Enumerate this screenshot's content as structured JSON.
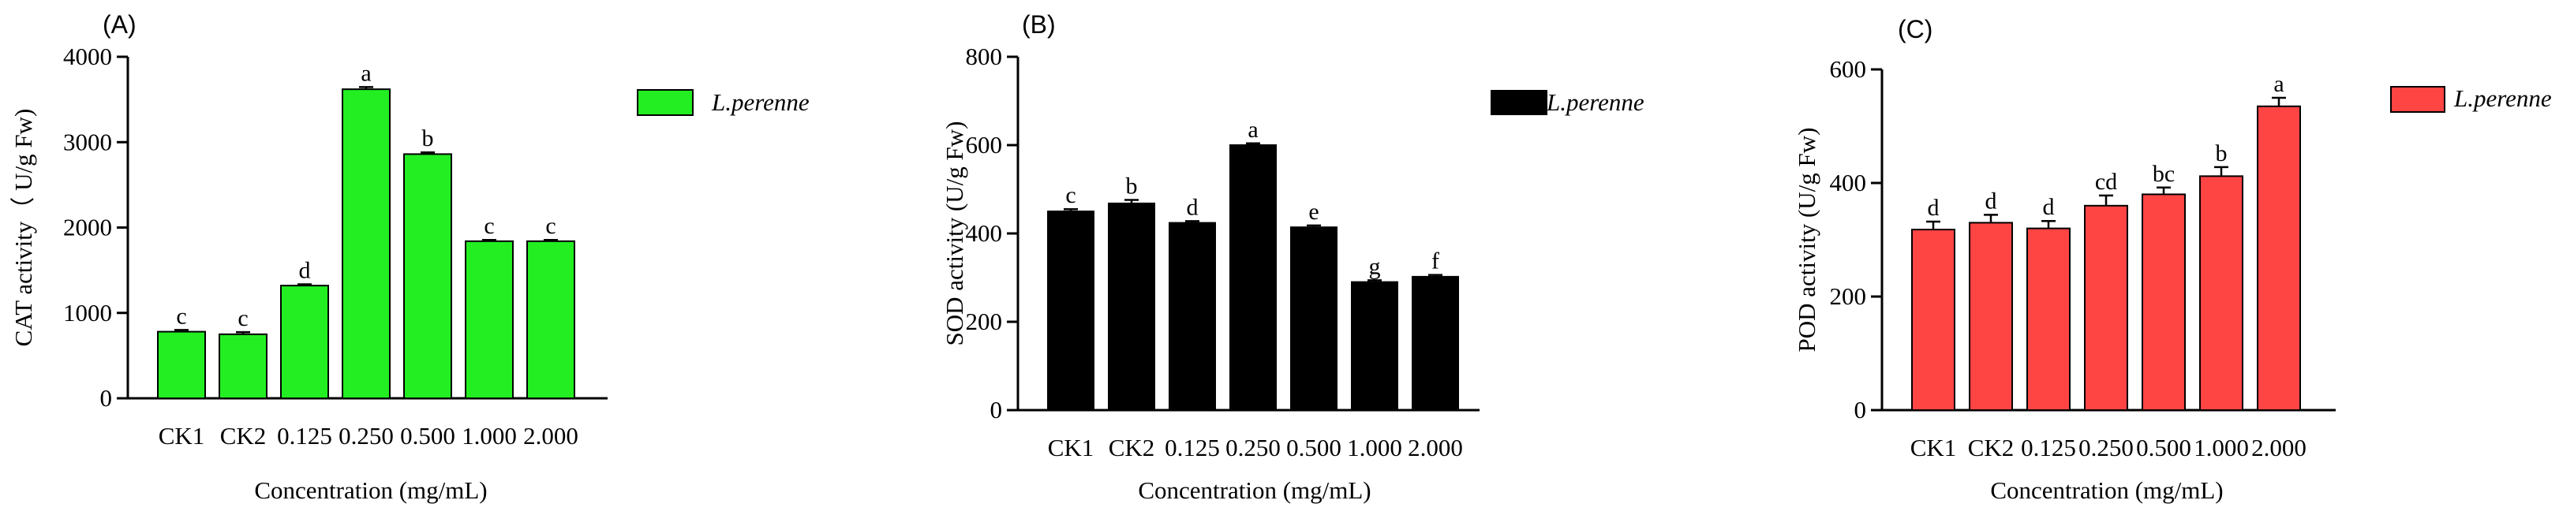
{
  "chart_data": [
    {
      "type": "bar",
      "panel_label": "(A)",
      "title": "",
      "xlabel": "Concentration (mg/mL)",
      "ylabel": "CAT activity（ U/g Fw)",
      "categories": [
        "CK1",
        "CK2",
        "0.125",
        "0.250",
        "0.500",
        "1.000",
        "2.000"
      ],
      "series": [
        {
          "name": "L.perenne",
          "values": [
            780,
            750,
            1320,
            3620,
            2860,
            1840,
            1840
          ],
          "errors": [
            20,
            25,
            15,
            25,
            20,
            15,
            15
          ],
          "letters": [
            "c",
            "c",
            "d",
            "a",
            "b",
            "c",
            "c"
          ]
        }
      ],
      "ylim": [
        0,
        4000
      ],
      "yticks": [
        0,
        1000,
        2000,
        3000,
        4000
      ],
      "legend": "top-right",
      "color": "#22ee22"
    },
    {
      "type": "bar",
      "panel_label": "(B)",
      "title": "",
      "xlabel": "Concentration (mg/mL)",
      "ylabel": "SOD activity (U/g Fw)",
      "categories": [
        "CK1",
        "CK2",
        "0.125",
        "0.250",
        "0.500",
        "1.000",
        "2.000"
      ],
      "series": [
        {
          "name": "L.perenne",
          "values": [
            450,
            468,
            424,
            600,
            414,
            290,
            302
          ],
          "errors": [
            5,
            8,
            4,
            4,
            4,
            4,
            4
          ],
          "letters": [
            "c",
            "b",
            "d",
            "a",
            "e",
            "g",
            "f"
          ]
        }
      ],
      "ylim": [
        0,
        800
      ],
      "yticks": [
        0,
        200,
        400,
        600,
        800
      ],
      "legend": "top-right",
      "color": "#000000"
    },
    {
      "type": "bar",
      "panel_label": "(C)",
      "title": "",
      "xlabel": "Concentration (mg/mL)",
      "ylabel": "POD activity (U/g Fw)",
      "categories": [
        "CK1",
        "CK2",
        "0.125",
        "0.250",
        "0.500",
        "1.000",
        "2.000"
      ],
      "series": [
        {
          "name": "L.perenne",
          "values": [
            318,
            330,
            320,
            360,
            380,
            412,
            535
          ],
          "errors": [
            14,
            14,
            13,
            18,
            12,
            16,
            15
          ],
          "letters": [
            "d",
            "d",
            "d",
            "cd",
            "bc",
            "b",
            "a"
          ]
        }
      ],
      "ylim": [
        0,
        600
      ],
      "yticks": [
        0,
        200,
        400,
        600
      ],
      "legend": "top-right",
      "color": "#ff4444"
    }
  ]
}
